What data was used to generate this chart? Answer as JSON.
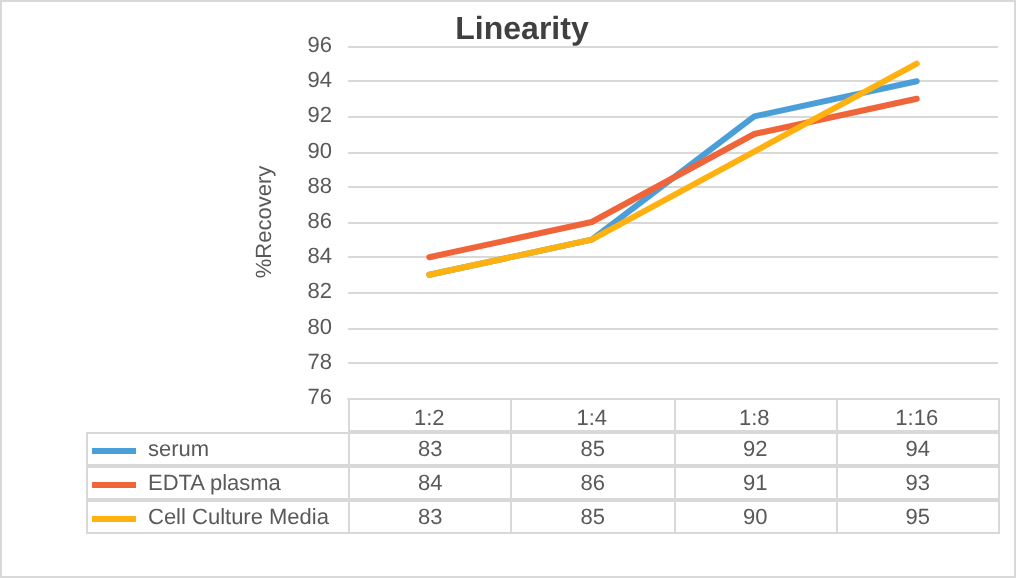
{
  "chart_data": {
    "type": "line",
    "title": "Linearity",
    "ylabel": "%Recovery",
    "categories": [
      "1:2",
      "1:4",
      "1:8",
      "1:16"
    ],
    "series": [
      {
        "name": "serum",
        "color": "#4a9fd8",
        "values": [
          83,
          85,
          92,
          94
        ]
      },
      {
        "name": "EDTA plasma",
        "color": "#f0643a",
        "values": [
          84,
          86,
          91,
          93
        ]
      },
      {
        "name": "Cell Culture Media",
        "color": "#ffb20f",
        "values": [
          83,
          85,
          90,
          95
        ]
      }
    ],
    "ylim": [
      76,
      96
    ],
    "yticks": [
      76,
      78,
      80,
      82,
      84,
      86,
      88,
      90,
      92,
      94,
      96
    ],
    "grid": "y",
    "legend": "bottom",
    "data_labels": true,
    "marker": "none",
    "line_style": "solid"
  }
}
